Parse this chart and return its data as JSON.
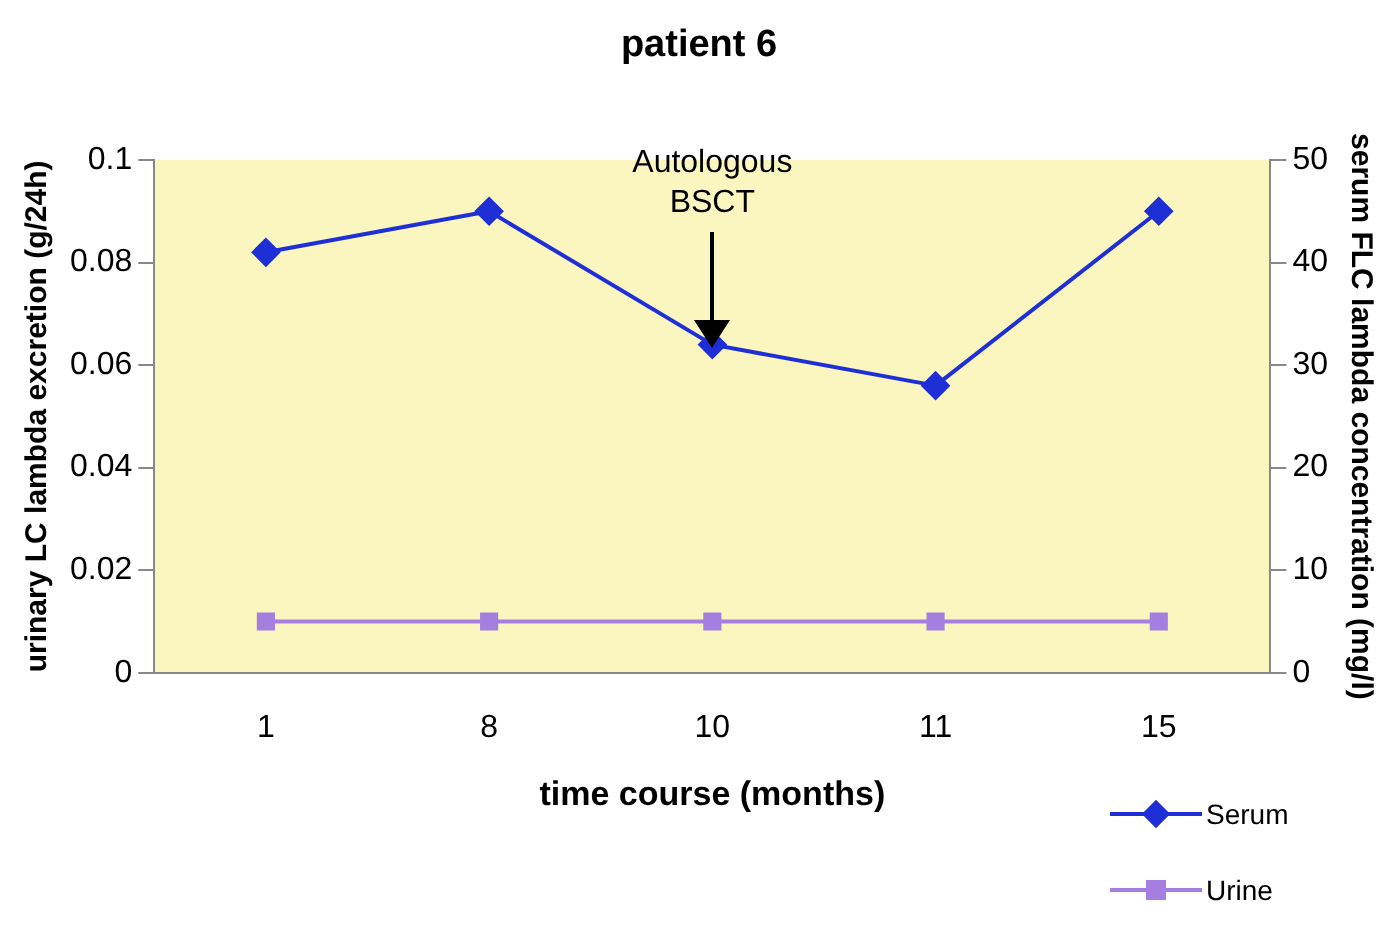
{
  "chart_data": {
    "type": "line",
    "title": "patient 6",
    "xlabel": "time course (months)",
    "ylabel": "urinary LC lambda excretion (g/24h)",
    "y2label": "serum FLC lambda concentration (mg/l)",
    "categories": [
      "1",
      "8",
      "10",
      "11",
      "15"
    ],
    "series": [
      {
        "name": "Serum",
        "color": "#1f2fd6",
        "marker": "diamond",
        "axis": "y2",
        "values": [
          41,
          45,
          32,
          28,
          45
        ]
      },
      {
        "name": "Urine",
        "color": "#a67ee0",
        "marker": "square",
        "values": [
          0.01,
          0.01,
          0.01,
          0.01,
          0.01
        ]
      }
    ],
    "ylim": [
      0,
      0.1
    ],
    "yticks": [
      0,
      0.02,
      0.04,
      0.06,
      0.08,
      0.1
    ],
    "y2lim": [
      0,
      50
    ],
    "y2ticks": [
      0,
      10,
      20,
      30,
      40,
      50
    ],
    "annotations": [
      "Autologous BSCT"
    ],
    "grid": false,
    "legend": "bottom right"
  }
}
